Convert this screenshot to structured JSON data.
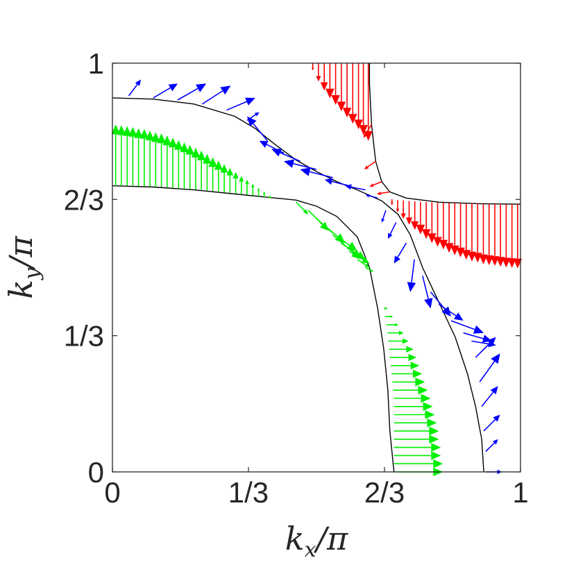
{
  "chart_data": {
    "type": "quiver",
    "xlabel": "k_x/π",
    "ylabel": "k_y/π",
    "xlim": [
      0,
      1
    ],
    "ylim": [
      0,
      1
    ],
    "xticks": [
      {
        "value": 0,
        "label": "0"
      },
      {
        "value": 0.3333,
        "label": "1/3"
      },
      {
        "value": 0.6667,
        "label": "2/3"
      },
      {
        "value": 1,
        "label": "1"
      }
    ],
    "yticks": [
      {
        "value": 0,
        "label": "0"
      },
      {
        "value": 0.3333,
        "label": "1/3"
      },
      {
        "value": 0.6667,
        "label": "2/3"
      },
      {
        "value": 1,
        "label": "1"
      }
    ],
    "grid": false,
    "colors": {
      "red": "#ff0000",
      "blue": "#0000ff",
      "green": "#00ee00",
      "contour": "#000000",
      "axis": "#262626"
    },
    "contours": [
      {
        "name": "outer",
        "points": [
          [
            0,
            0.915
          ],
          [
            0.1,
            0.912
          ],
          [
            0.2,
            0.9
          ],
          [
            0.3,
            0.87
          ],
          [
            0.35,
            0.84
          ],
          [
            0.4,
            0.8
          ],
          [
            0.45,
            0.763
          ],
          [
            0.5,
            0.735
          ],
          [
            0.55,
            0.71
          ],
          [
            0.6,
            0.69
          ],
          [
            0.66,
            0.663
          ],
          [
            0.7,
            0.63
          ],
          [
            0.73,
            0.58
          ],
          [
            0.76,
            0.5
          ],
          [
            0.8,
            0.415
          ],
          [
            0.84,
            0.33
          ],
          [
            0.87,
            0.24
          ],
          [
            0.89,
            0.16
          ],
          [
            0.905,
            0.08
          ],
          [
            0.91,
            0.0
          ]
        ]
      },
      {
        "name": "inner",
        "points": [
          [
            0,
            0.7
          ],
          [
            0.1,
            0.697
          ],
          [
            0.2,
            0.69
          ],
          [
            0.3,
            0.68
          ],
          [
            0.4,
            0.67
          ],
          [
            0.45,
            0.665
          ],
          [
            0.5,
            0.65
          ],
          [
            0.55,
            0.625
          ],
          [
            0.6,
            0.575
          ],
          [
            0.63,
            0.5
          ],
          [
            0.65,
            0.4
          ],
          [
            0.665,
            0.3
          ],
          [
            0.675,
            0.2
          ],
          [
            0.68,
            0.1
          ],
          [
            0.69,
            0.0
          ]
        ]
      },
      {
        "name": "red-corner",
        "points": [
          [
            0.63,
            1.0
          ],
          [
            0.63,
            0.95
          ],
          [
            0.635,
            0.85
          ],
          [
            0.645,
            0.76
          ],
          [
            0.66,
            0.71
          ],
          [
            0.68,
            0.685
          ],
          [
            0.72,
            0.67
          ],
          [
            0.8,
            0.66
          ],
          [
            0.9,
            0.656
          ],
          [
            1.0,
            0.655
          ]
        ]
      }
    ],
    "series": [
      {
        "color": "red",
        "arrows": [
          [
            0.491,
            1.0,
            0,
            -0.018
          ],
          [
            0.505,
            1.0,
            0,
            -0.045
          ],
          [
            0.519,
            1.0,
            0,
            -0.067
          ],
          [
            0.533,
            1.0,
            0,
            -0.086
          ],
          [
            0.547,
            1.0,
            0,
            -0.102
          ],
          [
            0.561,
            1.0,
            0,
            -0.118
          ],
          [
            0.575,
            1.0,
            0,
            -0.133
          ],
          [
            0.589,
            1.0,
            0,
            -0.148
          ],
          [
            0.603,
            1.0,
            0,
            -0.162
          ],
          [
            0.615,
            1.0,
            0,
            -0.175
          ],
          [
            0.627,
            1.0,
            0,
            -0.19
          ],
          [
            0.635,
            0.85,
            -0.02,
            -0.033
          ],
          [
            0.645,
            0.76,
            -0.028,
            -0.02
          ],
          [
            0.66,
            0.71,
            -0.03,
            -0.012
          ],
          [
            0.68,
            0.685,
            -0.032,
            -0.005
          ],
          [
            0.685,
            0.667,
            0,
            -0.015
          ],
          [
            0.699,
            0.665,
            0,
            -0.03
          ],
          [
            0.713,
            0.664,
            0,
            -0.045
          ],
          [
            0.727,
            0.663,
            0,
            -0.058
          ],
          [
            0.741,
            0.662,
            0,
            -0.07
          ],
          [
            0.755,
            0.661,
            0,
            -0.08
          ],
          [
            0.769,
            0.66,
            0,
            -0.09
          ],
          [
            0.783,
            0.66,
            0,
            -0.1
          ],
          [
            0.797,
            0.659,
            0,
            -0.108
          ],
          [
            0.811,
            0.659,
            0,
            -0.115
          ],
          [
            0.825,
            0.658,
            0,
            -0.122
          ],
          [
            0.839,
            0.658,
            0,
            -0.128
          ],
          [
            0.853,
            0.658,
            0,
            -0.133
          ],
          [
            0.867,
            0.657,
            0,
            -0.138
          ],
          [
            0.881,
            0.657,
            0,
            -0.142
          ],
          [
            0.895,
            0.657,
            0,
            -0.145
          ],
          [
            0.909,
            0.656,
            0,
            -0.148
          ],
          [
            0.923,
            0.656,
            0,
            -0.15
          ],
          [
            0.937,
            0.656,
            0,
            -0.152
          ],
          [
            0.951,
            0.656,
            0,
            -0.154
          ],
          [
            0.965,
            0.655,
            0,
            -0.155
          ],
          [
            0.979,
            0.655,
            0,
            -0.156
          ],
          [
            0.993,
            0.655,
            0,
            -0.157
          ]
        ]
      },
      {
        "color": "blue",
        "arrows": [
          [
            0.04,
            0.92,
            0.03,
            0.04
          ],
          [
            0.1,
            0.915,
            0.06,
            0.035
          ],
          [
            0.16,
            0.91,
            0.07,
            0.04
          ],
          [
            0.22,
            0.9,
            0.07,
            0.045
          ],
          [
            0.28,
            0.885,
            0.07,
            0.03
          ],
          [
            0.33,
            0.86,
            0.03,
            0.02
          ],
          [
            0.38,
            0.81,
            -0.05,
            0.06
          ],
          [
            0.42,
            0.78,
            -0.06,
            0.03
          ],
          [
            0.46,
            0.76,
            -0.07,
            0.03
          ],
          [
            0.5,
            0.74,
            -0.08,
            0.02
          ],
          [
            0.54,
            0.72,
            -0.08,
            0.02
          ],
          [
            0.58,
            0.7,
            -0.06,
            0.015
          ],
          [
            0.62,
            0.69,
            -0.05,
            0.01
          ],
          [
            0.65,
            0.67,
            -0.03,
            0.008
          ],
          [
            0.67,
            0.64,
            -0.01,
            -0.03
          ],
          [
            0.695,
            0.61,
            -0.02,
            -0.04
          ],
          [
            0.72,
            0.56,
            -0.03,
            -0.05
          ],
          [
            0.74,
            0.52,
            -0.01,
            -0.08
          ],
          [
            0.76,
            0.48,
            0.02,
            -0.08
          ],
          [
            0.78,
            0.44,
            0.05,
            -0.06
          ],
          [
            0.8,
            0.41,
            0.06,
            -0.04
          ],
          [
            0.83,
            0.37,
            0.08,
            -0.03
          ],
          [
            0.86,
            0.34,
            0.07,
            -0.02
          ],
          [
            0.88,
            0.32,
            0.06,
            -0.01
          ],
          [
            0.89,
            0.28,
            0.05,
            0.05
          ],
          [
            0.9,
            0.22,
            0.05,
            0.07
          ],
          [
            0.905,
            0.16,
            0.04,
            0.05
          ],
          [
            0.91,
            0.1,
            0.04,
            0.04
          ],
          [
            0.915,
            0.05,
            0.03,
            0.03
          ],
          [
            0.915,
            0.0,
            0.04,
            0.0
          ]
        ]
      },
      {
        "color": "green",
        "arrows": [
          [
            0.008,
            0.7,
            0,
            0.15
          ],
          [
            0.022,
            0.7,
            0,
            0.148
          ],
          [
            0.036,
            0.7,
            0,
            0.146
          ],
          [
            0.05,
            0.7,
            0,
            0.144
          ],
          [
            0.064,
            0.699,
            0,
            0.142
          ],
          [
            0.078,
            0.699,
            0,
            0.14
          ],
          [
            0.092,
            0.698,
            0,
            0.137
          ],
          [
            0.106,
            0.697,
            0,
            0.134
          ],
          [
            0.12,
            0.697,
            0,
            0.131
          ],
          [
            0.134,
            0.696,
            0,
            0.127
          ],
          [
            0.148,
            0.695,
            0,
            0.123
          ],
          [
            0.162,
            0.694,
            0,
            0.118
          ],
          [
            0.176,
            0.693,
            0,
            0.113
          ],
          [
            0.19,
            0.692,
            0,
            0.108
          ],
          [
            0.204,
            0.691,
            0,
            0.102
          ],
          [
            0.218,
            0.69,
            0,
            0.096
          ],
          [
            0.232,
            0.688,
            0,
            0.09
          ],
          [
            0.246,
            0.687,
            0,
            0.083
          ],
          [
            0.26,
            0.686,
            0,
            0.076
          ],
          [
            0.274,
            0.684,
            0,
            0.069
          ],
          [
            0.288,
            0.683,
            0,
            0.061
          ],
          [
            0.302,
            0.681,
            0,
            0.053
          ],
          [
            0.316,
            0.679,
            0,
            0.045
          ],
          [
            0.33,
            0.678,
            0,
            0.037
          ],
          [
            0.344,
            0.676,
            0,
            0.029
          ],
          [
            0.358,
            0.674,
            0,
            0.021
          ],
          [
            0.372,
            0.672,
            0,
            0.014
          ],
          [
            0.386,
            0.67,
            0,
            0.007
          ],
          [
            0.45,
            0.66,
            0.03,
            -0.03
          ],
          [
            0.48,
            0.64,
            0.05,
            -0.05
          ],
          [
            0.5,
            0.62,
            0.07,
            -0.06
          ],
          [
            0.52,
            0.6,
            0.08,
            -0.06
          ],
          [
            0.54,
            0.58,
            0.07,
            -0.06
          ],
          [
            0.56,
            0.56,
            0.06,
            -0.04
          ],
          [
            0.58,
            0.54,
            0.05,
            -0.03
          ],
          [
            0.6,
            0.52,
            0.03,
            -0.02
          ],
          [
            0.62,
            0.5,
            0.02,
            -0.01
          ],
          [
            0.665,
            0.4,
            0.01,
            0
          ],
          [
            0.668,
            0.38,
            0.02,
            0
          ],
          [
            0.671,
            0.36,
            0.03,
            0
          ],
          [
            0.674,
            0.34,
            0.04,
            0
          ],
          [
            0.676,
            0.32,
            0.05,
            0
          ],
          [
            0.678,
            0.3,
            0.06,
            0
          ],
          [
            0.68,
            0.28,
            0.065,
            0
          ],
          [
            0.682,
            0.26,
            0.07,
            0
          ],
          [
            0.684,
            0.24,
            0.075,
            0
          ],
          [
            0.686,
            0.22,
            0.08,
            0
          ],
          [
            0.688,
            0.2,
            0.085,
            0
          ],
          [
            0.69,
            0.18,
            0.09,
            0
          ],
          [
            0.69,
            0.16,
            0.095,
            0
          ],
          [
            0.69,
            0.14,
            0.1,
            0
          ],
          [
            0.69,
            0.12,
            0.105,
            0
          ],
          [
            0.69,
            0.1,
            0.11,
            0
          ],
          [
            0.69,
            0.08,
            0.11,
            0
          ],
          [
            0.69,
            0.06,
            0.115,
            0
          ],
          [
            0.69,
            0.04,
            0.115,
            0
          ],
          [
            0.69,
            0.02,
            0.12,
            0
          ],
          [
            0.69,
            0.0,
            0.12,
            0
          ]
        ]
      }
    ]
  }
}
